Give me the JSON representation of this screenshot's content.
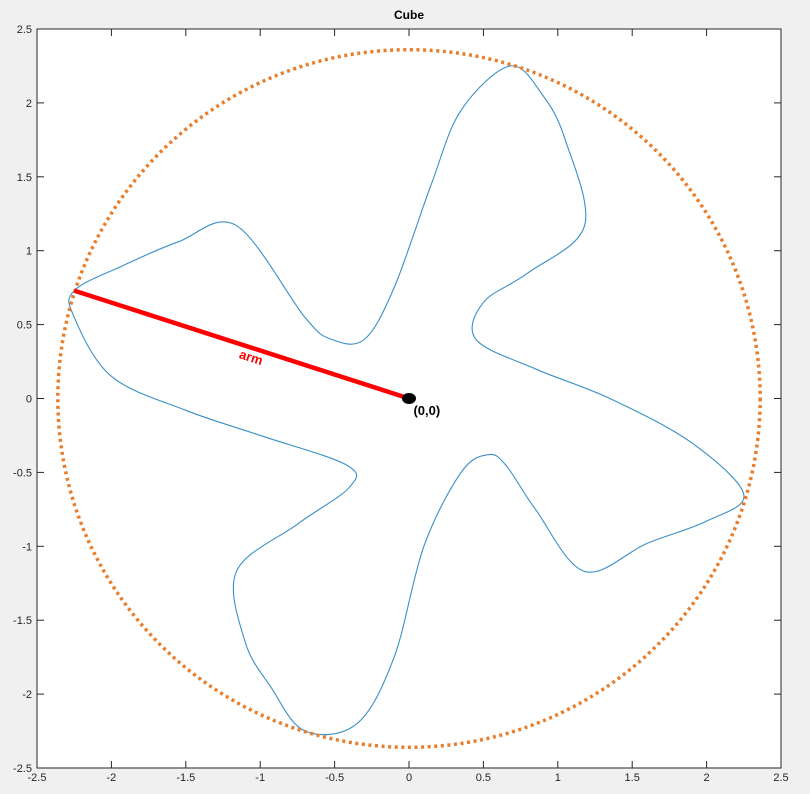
{
  "chart_data": {
    "type": "line",
    "title": "Cube",
    "xlabel": "",
    "ylabel": "",
    "xlim": [
      -2.5,
      2.5
    ],
    "ylim": [
      -2.5,
      2.5
    ],
    "xticks": [
      -2.5,
      -2,
      -1.5,
      -1,
      -0.5,
      0,
      0.5,
      1,
      1.5,
      2,
      2.5
    ],
    "yticks": [
      -2.5,
      -2,
      -1.5,
      -1,
      -0.5,
      0,
      0.5,
      1,
      1.5,
      2,
      2.5
    ],
    "grid": false,
    "colors": {
      "shape": "#3a8fc6",
      "circle": "#e87d2b",
      "arm": "#ff0000",
      "origin": "#000000",
      "axes_bg": "#ffffff",
      "figure_bg": "#f0f0f0"
    },
    "series": [
      {
        "type": "curve",
        "closed": true,
        "line_style": "solid",
        "points": [
          [
            -2.25,
            0.73
          ],
          [
            -1.92,
            0.9
          ],
          [
            -1.55,
            1.06
          ],
          [
            -1.16,
            1.17
          ],
          [
            -0.7,
            0.55
          ],
          [
            -0.52,
            0.4
          ],
          [
            -0.3,
            0.4
          ],
          [
            -0.1,
            0.75
          ],
          [
            0.15,
            1.45
          ],
          [
            0.35,
            1.95
          ],
          [
            0.68,
            2.25
          ],
          [
            0.9,
            2.05
          ],
          [
            1.05,
            1.75
          ],
          [
            1.18,
            1.17
          ],
          [
            0.8,
            0.85
          ],
          [
            0.5,
            0.65
          ],
          [
            0.45,
            0.4
          ],
          [
            0.85,
            0.2
          ],
          [
            1.35,
            0.0
          ],
          [
            1.9,
            -0.3
          ],
          [
            2.25,
            -0.65
          ],
          [
            2.0,
            -0.83
          ],
          [
            1.6,
            -0.98
          ],
          [
            1.18,
            -1.17
          ],
          [
            0.85,
            -0.75
          ],
          [
            0.65,
            -0.45
          ],
          [
            0.53,
            -0.38
          ],
          [
            0.35,
            -0.5
          ],
          [
            0.1,
            -1.0
          ],
          [
            -0.1,
            -1.75
          ],
          [
            -0.35,
            -2.2
          ],
          [
            -0.7,
            -2.25
          ],
          [
            -0.93,
            -1.95
          ],
          [
            -1.1,
            -1.65
          ],
          [
            -1.16,
            -1.17
          ],
          [
            -0.75,
            -0.85
          ],
          [
            -0.4,
            -0.6
          ],
          [
            -0.42,
            -0.45
          ],
          [
            -1.0,
            -0.25
          ],
          [
            -1.5,
            -0.08
          ],
          [
            -2.0,
            0.15
          ],
          [
            -2.25,
            0.55
          ]
        ]
      },
      {
        "type": "circle",
        "center": [
          0,
          0
        ],
        "radius": 2.36,
        "line_style": "dotted"
      },
      {
        "type": "segment",
        "points": [
          [
            -2.25,
            0.73
          ],
          [
            0,
            0
          ]
        ]
      },
      {
        "type": "marker",
        "points": [
          [
            0,
            0
          ]
        ]
      }
    ],
    "annotations": [
      {
        "text": "arm",
        "x": -1.07,
        "y": 0.25,
        "color": "#ff0000",
        "rotate_deg": 18
      },
      {
        "text": "(0,0)",
        "x": 0.03,
        "y": -0.11,
        "color": "#000000"
      }
    ]
  }
}
